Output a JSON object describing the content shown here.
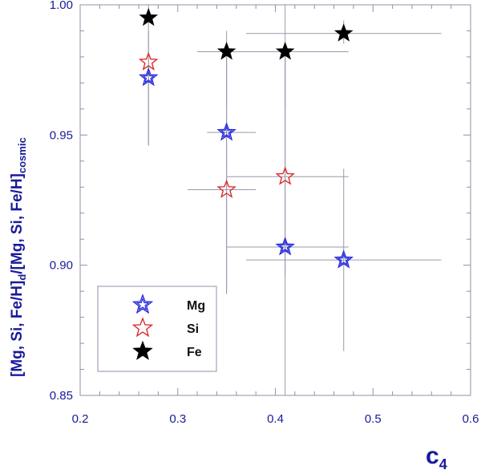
{
  "chart_data": {
    "type": "scatter",
    "title": "",
    "xlabel": "c",
    "xlabel_sub": "4",
    "ylabel_parts": [
      "[Mg, Si, Fe/H]",
      "d",
      "/[Mg, Si, Fe/H]",
      "cosmic"
    ],
    "xlim": [
      0.2,
      0.6
    ],
    "ylim": [
      0.85,
      1.0
    ],
    "xticks": [
      0.2,
      0.3,
      0.4,
      0.5,
      0.6
    ],
    "xtick_labels": [
      "0.2",
      "0.3",
      "0.4",
      "0.5",
      "0.6"
    ],
    "yticks": [
      0.85,
      0.9,
      0.95,
      1.0
    ],
    "ytick_labels": [
      "0.85",
      "0.90",
      "0.95",
      "1.00"
    ],
    "grid": false,
    "legend_position": "bottom-left",
    "series": [
      {
        "name": "Mg",
        "color": "#2222dd",
        "marker": "open-star-double",
        "points": [
          {
            "x": 0.27,
            "y": 0.972,
            "xerr": [
              0.27,
              0.27
            ],
            "yerr": [
              0.946,
              0.99
            ]
          },
          {
            "x": 0.35,
            "y": 0.951,
            "xerr": [
              0.33,
              0.38
            ],
            "yerr": [
              0.889,
              0.98
            ]
          },
          {
            "x": 0.41,
            "y": 0.907,
            "xerr": [
              0.35,
              0.475
            ],
            "yerr": [
              0.85,
              0.982
            ]
          },
          {
            "x": 0.47,
            "y": 0.902,
            "xerr": [
              0.37,
              0.57
            ],
            "yerr": [
              0.867,
              0.937
            ]
          }
        ]
      },
      {
        "name": "Si",
        "color": "#dd2222",
        "marker": "open-star",
        "points": [
          {
            "x": 0.27,
            "y": 0.978,
            "xerr": [
              0.27,
              0.27
            ],
            "yerr": [
              0.946,
              0.99
            ]
          },
          {
            "x": 0.35,
            "y": 0.929,
            "xerr": [
              0.31,
              0.38
            ],
            "yerr": [
              0.889,
              0.98
            ]
          },
          {
            "x": 0.41,
            "y": 0.934,
            "xerr": [
              0.35,
              0.475
            ],
            "yerr": [
              0.896,
              0.982
            ]
          }
        ]
      },
      {
        "name": "Fe",
        "color": "#000000",
        "marker": "filled-star",
        "points": [
          {
            "x": 0.27,
            "y": 0.995,
            "xerr": [
              0.27,
              0.27
            ],
            "yerr": [
              0.99,
              1.0
            ]
          },
          {
            "x": 0.35,
            "y": 0.982,
            "xerr": [
              0.32,
              0.38
            ],
            "yerr": [
              0.96,
              0.99
            ]
          },
          {
            "x": 0.41,
            "y": 0.982,
            "xerr": [
              0.35,
              0.475
            ],
            "yerr": [
              0.96,
              1.0
            ]
          },
          {
            "x": 0.47,
            "y": 0.989,
            "xerr": [
              0.37,
              0.57
            ],
            "yerr": [
              0.985,
              0.994
            ]
          }
        ]
      }
    ]
  }
}
